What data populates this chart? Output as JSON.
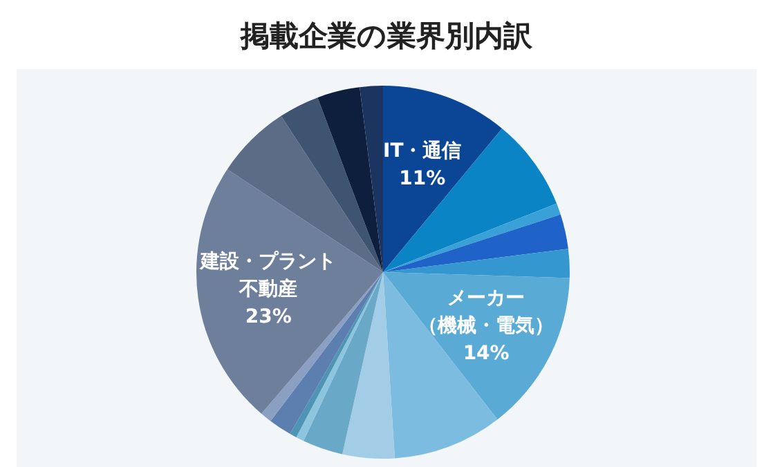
{
  "chart_data": {
    "type": "pie",
    "title": "掲載企業の業界別内訳",
    "categories": [
      "IT・通信",
      null,
      null,
      null,
      null,
      "メーカー（機械・電気）",
      null,
      null,
      null,
      null,
      null,
      null,
      null,
      "建設・プラント不動産",
      null,
      null,
      null,
      null
    ],
    "values": [
      11,
      8,
      1,
      3,
      2.5,
      14,
      9.5,
      4.5,
      3.5,
      0.7,
      0.6,
      2,
      1,
      23,
      6.5,
      3.5,
      3.7,
      2
    ],
    "value_labels": [
      "11%",
      null,
      null,
      null,
      null,
      "14%",
      null,
      null,
      null,
      null,
      null,
      null,
      null,
      "23%",
      null,
      null,
      null,
      null
    ],
    "colors": [
      "#0a4596",
      "#0a84c4",
      "#3aa0d8",
      "#1f63c9",
      "#3597cf",
      "#5aaad6",
      "#7bbce0",
      "#a3cde6",
      "#6aa8c8",
      "#8cc5dd",
      "#4d94b5",
      "#5d7fb0",
      "#8a9fc2",
      "#6e7f9b",
      "#5c6c86",
      "#3f5470",
      "#0e1f3d",
      "#1c3560"
    ]
  }
}
